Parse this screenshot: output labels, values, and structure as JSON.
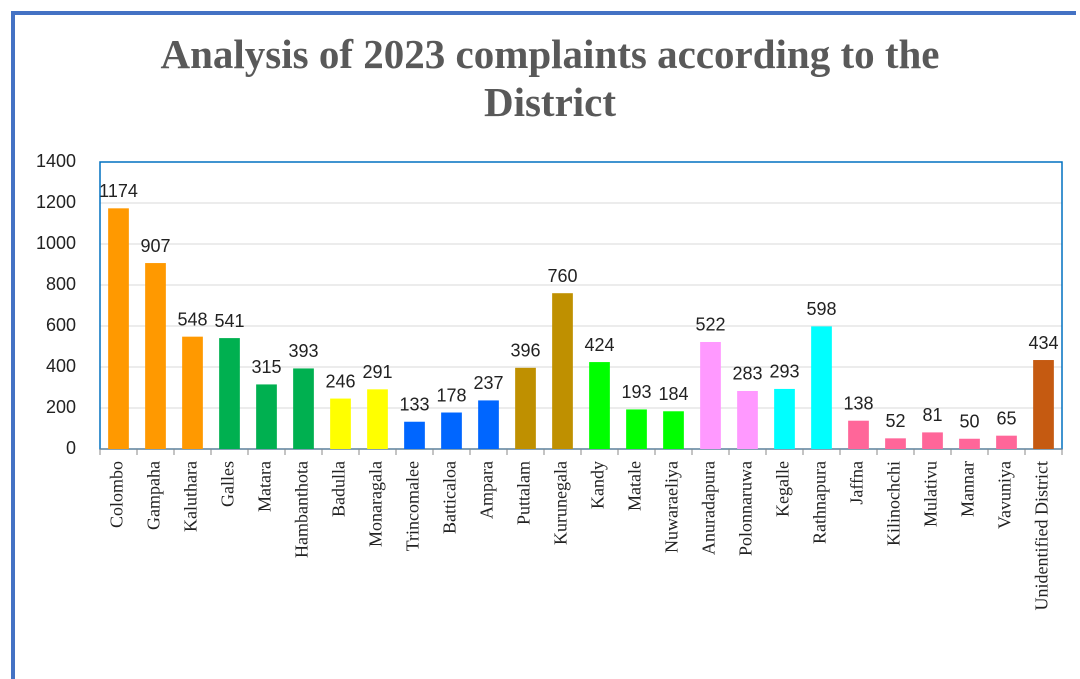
{
  "chart_data": {
    "type": "bar",
    "title": "Analysis of 2023 complaints according to the District",
    "categories": [
      "Colombo",
      "Gampaha",
      "Kaluthara",
      "Galles",
      "Matara",
      "Hambanthota",
      "Badulla",
      "Monaragala",
      "Trincomalee",
      "Batticaloa",
      "Ampara",
      "Puttalam",
      "Kurunegala",
      "Kandy",
      "Matale",
      "Nuwaraeliya",
      "Anuradapura",
      "Polonnaruwa",
      "Kegalle",
      "Rathnapura",
      "Jaffna",
      "Kilinochchi",
      "Mulativu",
      "Mannar",
      "Vavuniya",
      "Unidentified District"
    ],
    "values": [
      1174,
      907,
      548,
      541,
      315,
      393,
      246,
      291,
      133,
      178,
      237,
      396,
      760,
      424,
      193,
      184,
      522,
      283,
      293,
      598,
      138,
      52,
      81,
      50,
      65,
      434
    ],
    "colors": [
      "#ff9900",
      "#ff9900",
      "#ff9900",
      "#00b050",
      "#00b050",
      "#00b050",
      "#ffff00",
      "#ffff00",
      "#0066ff",
      "#0066ff",
      "#0066ff",
      "#bf9000",
      "#bf9000",
      "#00ff00",
      "#00ff00",
      "#00ff00",
      "#ff99ff",
      "#ff99ff",
      "#00ffff",
      "#00ffff",
      "#ff6699",
      "#ff6699",
      "#ff6699",
      "#ff6699",
      "#ff6699",
      "#c55a11"
    ],
    "ylim": [
      0,
      1400
    ],
    "yticks": [
      0,
      200,
      400,
      600,
      800,
      1000,
      1200,
      1400
    ],
    "grid": true
  }
}
